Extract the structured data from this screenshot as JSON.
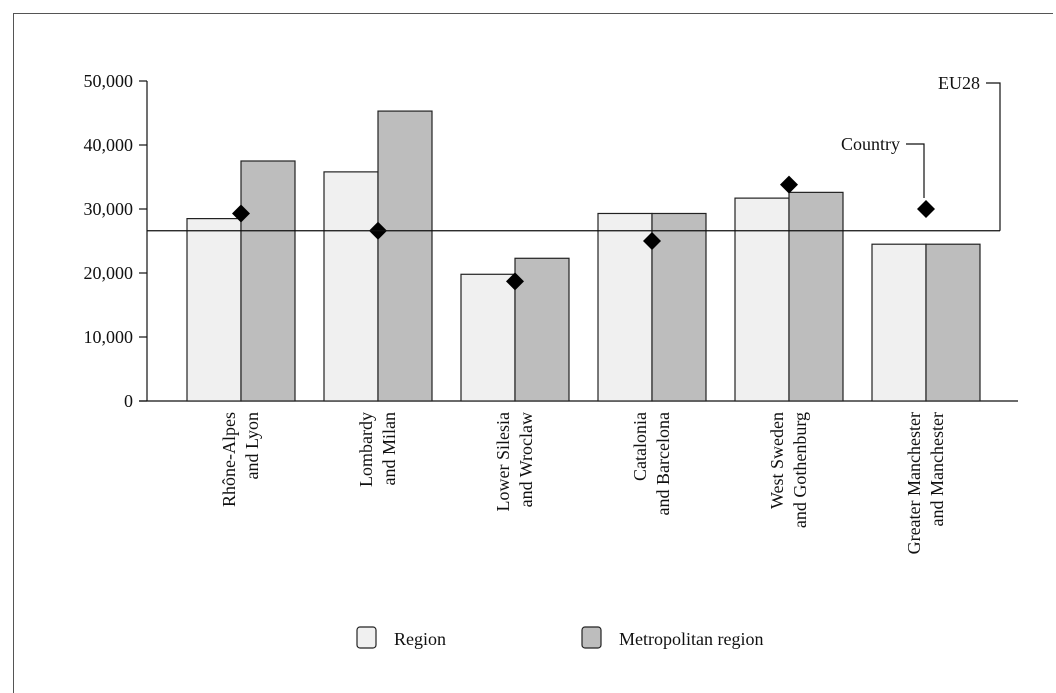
{
  "chart_data": {
    "type": "bar",
    "categories": [
      [
        "Rhône-Alpes",
        "and Lyon"
      ],
      [
        "Lombardy",
        "and Milan"
      ],
      [
        "Lower Silesia",
        "and Wroclaw"
      ],
      [
        "Catalonia",
        "and Barcelona"
      ],
      [
        "West Sweden",
        "and Gothenburg"
      ],
      [
        "Greater Manchester",
        "and Manchester"
      ]
    ],
    "series": [
      {
        "name": "Region",
        "values": [
          28500,
          35800,
          19800,
          29300,
          31700,
          24500
        ],
        "color": "#f0f0f0"
      },
      {
        "name": "Metropolitan region",
        "values": [
          37500,
          45300,
          22300,
          29300,
          32600,
          24500
        ],
        "color": "#bdbdbd"
      }
    ],
    "markers": {
      "name": "Country",
      "values": [
        29300,
        26600,
        18700,
        25000,
        33800,
        30000
      ],
      "color": "#000000"
    },
    "reference_line": {
      "name": "EU28",
      "value": 26600
    },
    "annotations": {
      "eu_label": "EU28",
      "country_label": "Country"
    },
    "ylim": [
      0,
      50000
    ],
    "yticks": [
      0,
      10000,
      20000,
      30000,
      40000,
      50000
    ],
    "ytick_labels": [
      "0",
      "10,000",
      "20,000",
      "30,000",
      "40,000",
      "50,000"
    ],
    "grid": false,
    "legend_position": "bottom"
  },
  "legend": {
    "region_label": "Region",
    "metro_label": "Metropolitan region"
  }
}
